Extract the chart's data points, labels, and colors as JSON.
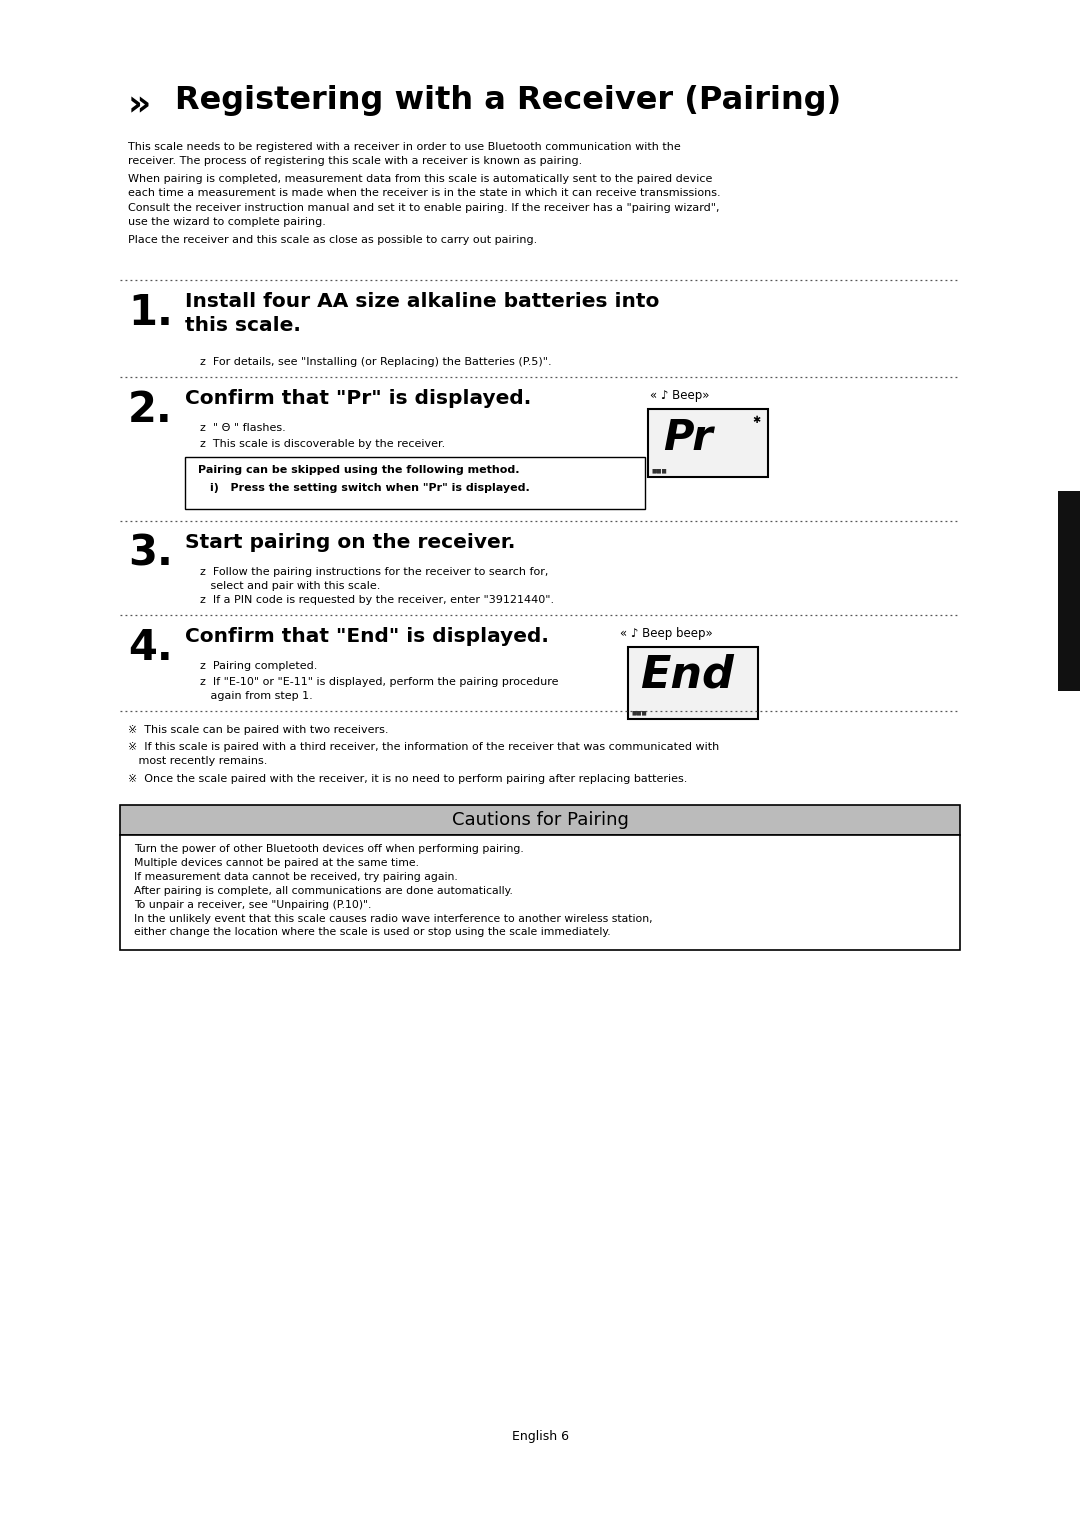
{
  "bg_color": "#ffffff",
  "title_arrows": "»",
  "title_text": "Registering with a Receiver (Pairing)",
  "intro_paragraphs": [
    "This scale needs to be registered with a receiver in order to use Bluetooth communication with the\nreceiver. The process of registering this scale with a receiver is known as pairing.",
    "When pairing is completed, measurement data from this scale is automatically sent to the paired device\neach time a measurement is made when the receiver is in the state in which it can receive transmissions.\nConsult the receiver instruction manual and set it to enable pairing. If the receiver has a \"pairing wizard\",\nuse the wizard to complete pairing.",
    "Place the receiver and this scale as close as possible to carry out pairing."
  ],
  "step1_title": "Install four AA size alkaline batteries into\nthis scale.",
  "step1_bullet": "z  For details, see \"Installing (or Replacing) the Batteries (P.5)\".",
  "step2_title": "Confirm that \"Pr\" is displayed.",
  "step2_bullet1": "z  \" Θ \" flashes.",
  "step2_bullet2": "z  This scale is discoverable by the receiver.",
  "step2_beep": "« ♪ Beep»",
  "step2_display": "Pr",
  "step2_box_title": "Pairing can be skipped using the following method.",
  "step2_box_item": "i)   Press the setting switch when \"Pr\" is displayed.",
  "step3_title": "Start pairing on the receiver.",
  "step3_bullet1": "z  Follow the pairing instructions for the receiver to search for,\n   select and pair with this scale.",
  "step3_bullet2": "z  If a PIN code is requested by the receiver, enter \"39121440\".",
  "step4_title": "Confirm that \"End\" is displayed.",
  "step4_bullet1": "z  Pairing completed.",
  "step4_bullet2": "z  If \"E-10\" or \"E-11\" is displayed, perform the pairing procedure\n   again from step 1.",
  "step4_beep": "« ♪ Beep beep»",
  "step4_display": "End",
  "notes": [
    "※  This scale can be paired with two receivers.",
    "※  If this scale is paired with a third receiver, the information of the receiver that was communicated with\n   most recently remains.",
    "※  Once the scale paired with the receiver, it is no need to perform pairing after replacing batteries."
  ],
  "caution_title": "Cautions for Pairing",
  "caution_items": [
    "Turn the power of other Bluetooth devices off when performing pairing.",
    "Multiple devices cannot be paired at the same time.",
    "If measurement data cannot be received, try pairing again.",
    "After pairing is complete, all communications are done automatically.",
    "To unpair a receiver, see \"Unpairing (P.10)\".",
    "In the unlikely event that this scale causes radio wave interference to another wireless station,\neither change the location where the scale is used or stop using the scale immediately."
  ],
  "footer": "English 6",
  "right_tab_color": "#111111",
  "caution_header_bg": "#bbbbbb",
  "display_bg": "#e8e8e8"
}
